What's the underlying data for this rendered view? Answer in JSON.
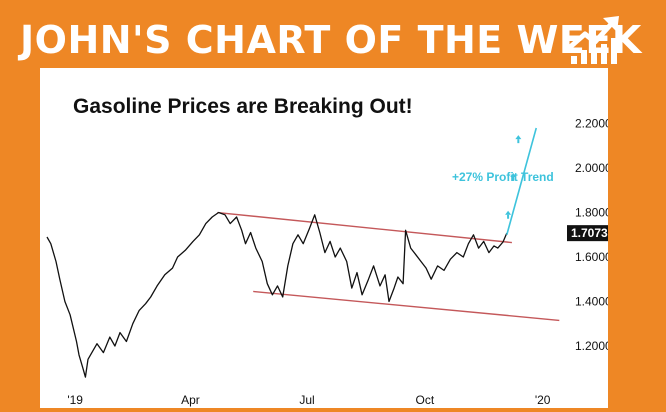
{
  "header": {
    "banner": "JOHN'S CHART OF THE WEEK",
    "logo_icon": "growth-chart-icon",
    "background_color": "#ee8725"
  },
  "chart_data": {
    "type": "line",
    "title": "Gasoline Prices are Breaking Out!",
    "xlabel": "",
    "ylabel": "",
    "x_ticks": [
      "'19",
      "Apr",
      "Jul",
      "Oct",
      "'20"
    ],
    "y_ticks": [
      "2.2000",
      "2.0000",
      "1.8000",
      "1.6000",
      "1.4000",
      "1.2000"
    ],
    "ylim": [
      1.02,
      2.27
    ],
    "xlim": [
      "2018-12-10",
      "2020-01-20"
    ],
    "last_value_label": "1.7073",
    "series": [
      {
        "color": "#111111",
        "points": [
          [
            "2018-12-10",
            1.69
          ],
          [
            "2018-12-13",
            1.66
          ],
          [
            "2018-12-17",
            1.58
          ],
          [
            "2018-12-20",
            1.5
          ],
          [
            "2018-12-24",
            1.4
          ],
          [
            "2018-12-28",
            1.34
          ],
          [
            "2019-01-02",
            1.22
          ],
          [
            "2019-01-04",
            1.16
          ],
          [
            "2019-01-07",
            1.1
          ],
          [
            "2019-01-09",
            1.06
          ],
          [
            "2019-01-11",
            1.14
          ],
          [
            "2019-01-15",
            1.18
          ],
          [
            "2019-01-18",
            1.21
          ],
          [
            "2019-01-23",
            1.17
          ],
          [
            "2019-01-28",
            1.24
          ],
          [
            "2019-02-01",
            1.2
          ],
          [
            "2019-02-05",
            1.26
          ],
          [
            "2019-02-10",
            1.22
          ],
          [
            "2019-02-15",
            1.3
          ],
          [
            "2019-02-20",
            1.36
          ],
          [
            "2019-02-25",
            1.39
          ],
          [
            "2019-03-01",
            1.42
          ],
          [
            "2019-03-06",
            1.47
          ],
          [
            "2019-03-12",
            1.52
          ],
          [
            "2019-03-18",
            1.55
          ],
          [
            "2019-03-22",
            1.6
          ],
          [
            "2019-03-28",
            1.63
          ],
          [
            "2019-04-03",
            1.67
          ],
          [
            "2019-04-08",
            1.7
          ],
          [
            "2019-04-13",
            1.75
          ],
          [
            "2019-04-18",
            1.78
          ],
          [
            "2019-04-23",
            1.8
          ],
          [
            "2019-04-28",
            1.79
          ],
          [
            "2019-05-02",
            1.75
          ],
          [
            "2019-05-07",
            1.78
          ],
          [
            "2019-05-11",
            1.72
          ],
          [
            "2019-05-14",
            1.66
          ],
          [
            "2019-05-18",
            1.71
          ],
          [
            "2019-05-22",
            1.64
          ],
          [
            "2019-05-27",
            1.58
          ],
          [
            "2019-05-31",
            1.48
          ],
          [
            "2019-06-04",
            1.43
          ],
          [
            "2019-06-08",
            1.47
          ],
          [
            "2019-06-12",
            1.42
          ],
          [
            "2019-06-16",
            1.56
          ],
          [
            "2019-06-20",
            1.66
          ],
          [
            "2019-06-24",
            1.7
          ],
          [
            "2019-06-28",
            1.66
          ],
          [
            "2019-07-03",
            1.73
          ],
          [
            "2019-07-07",
            1.79
          ],
          [
            "2019-07-11",
            1.71
          ],
          [
            "2019-07-15",
            1.62
          ],
          [
            "2019-07-19",
            1.67
          ],
          [
            "2019-07-23",
            1.6
          ],
          [
            "2019-07-27",
            1.64
          ],
          [
            "2019-08-01",
            1.58
          ],
          [
            "2019-08-05",
            1.46
          ],
          [
            "2019-08-09",
            1.53
          ],
          [
            "2019-08-13",
            1.43
          ],
          [
            "2019-08-18",
            1.5
          ],
          [
            "2019-08-22",
            1.56
          ],
          [
            "2019-08-27",
            1.47
          ],
          [
            "2019-08-31",
            1.52
          ],
          [
            "2019-09-03",
            1.4
          ],
          [
            "2019-09-07",
            1.46
          ],
          [
            "2019-09-10",
            1.51
          ],
          [
            "2019-09-14",
            1.48
          ],
          [
            "2019-09-16",
            1.72
          ],
          [
            "2019-09-20",
            1.64
          ],
          [
            "2019-09-24",
            1.61
          ],
          [
            "2019-09-28",
            1.58
          ],
          [
            "2019-10-02",
            1.55
          ],
          [
            "2019-10-06",
            1.5
          ],
          [
            "2019-10-11",
            1.56
          ],
          [
            "2019-10-16",
            1.54
          ],
          [
            "2019-10-21",
            1.59
          ],
          [
            "2019-10-26",
            1.62
          ],
          [
            "2019-10-31",
            1.6
          ],
          [
            "2019-11-04",
            1.66
          ],
          [
            "2019-11-08",
            1.7
          ],
          [
            "2019-11-12",
            1.64
          ],
          [
            "2019-11-16",
            1.67
          ],
          [
            "2019-11-20",
            1.62
          ],
          [
            "2019-11-24",
            1.65
          ],
          [
            "2019-11-27",
            1.64
          ],
          [
            "2019-12-01",
            1.6673
          ],
          [
            "2019-12-04",
            1.7073
          ]
        ]
      }
    ],
    "channel_lines": [
      {
        "color": "#c4585a",
        "start": [
          "2019-04-22",
          1.8
        ],
        "end": [
          "2019-12-08",
          1.665
        ]
      },
      {
        "color": "#c4585a",
        "start": [
          "2019-05-20",
          1.445
        ],
        "end": [
          "2020-01-14",
          1.315
        ]
      }
    ],
    "trend_line": {
      "color": "#3ec3dc",
      "start": [
        "2019-12-04",
        1.7
      ],
      "end": [
        "2019-12-27",
        2.18
      ]
    },
    "trend_arrows": [
      [
        "2019-12-05",
        1.79
      ],
      [
        "2019-12-09",
        1.96
      ],
      [
        "2019-12-13",
        2.13
      ]
    ],
    "annotation": "+27% Profit Trend"
  }
}
